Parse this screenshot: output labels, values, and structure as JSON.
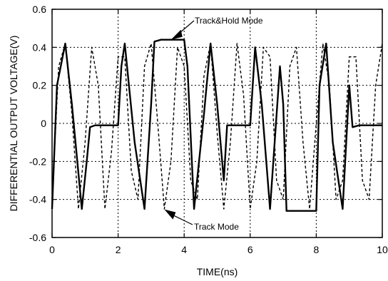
{
  "chart_data": {
    "type": "line",
    "title": "",
    "xlabel": "TIME(ns)",
    "ylabel": "DIFFERENTIAL OUTPUT VOLTAGE(V)",
    "xlim": [
      0,
      10
    ],
    "ylim": [
      -0.6,
      0.6
    ],
    "x_ticks": [
      0,
      2,
      4,
      6,
      8,
      10
    ],
    "x_tick_labels": [
      "0",
      "2",
      "4",
      "6",
      "8",
      "10"
    ],
    "y_ticks": [
      -0.6,
      -0.4,
      -0.2,
      0,
      0.2,
      0.4,
      0.6
    ],
    "y_tick_labels": [
      "-0.6",
      "-0.4",
      "-0.2",
      "0",
      "0.2",
      "0.4",
      "0.6"
    ],
    "grid": "dotted",
    "annotations": [
      {
        "text": "Track&Hold Mode",
        "target_x": 3.6,
        "target_y": 0.44
      },
      {
        "text": "Track Mode",
        "target_x": 3.4,
        "target_y": -0.4
      }
    ],
    "series": [
      {
        "style": "dashed",
        "x": [
          0,
          0.2,
          0.4,
          0.6,
          0.8,
          1.0,
          1.2,
          1.4,
          1.6,
          1.8,
          2.0,
          2.2,
          2.4,
          2.6,
          2.8,
          3.0,
          3.2,
          3.4,
          3.6,
          3.8,
          4.0,
          4.2,
          4.4,
          4.6,
          4.8,
          5.0,
          5.2,
          5.4,
          5.6,
          5.8,
          6.0,
          6.2,
          6.4,
          6.6,
          6.8,
          7.0,
          7.2,
          7.4,
          7.6,
          7.8,
          8.0,
          8.2,
          8.4,
          8.6,
          8.8,
          9.0,
          9.2,
          9.4,
          9.6,
          9.8,
          10.0
        ],
        "y": [
          -0.4,
          0.3,
          0.42,
          0.05,
          -0.45,
          -0.1,
          0.4,
          0.2,
          -0.45,
          -0.15,
          0.35,
          0.35,
          -0.25,
          -0.4,
          0.3,
          0.42,
          0.0,
          -0.45,
          -0.2,
          0.4,
          0.3,
          -0.3,
          -0.4,
          0.25,
          0.42,
          -0.05,
          -0.45,
          -0.1,
          0.42,
          0.15,
          -0.45,
          -0.2,
          0.4,
          0.35,
          -0.3,
          -0.4,
          0.3,
          0.4,
          -0.1,
          -0.45,
          0.0,
          0.42,
          0.2,
          -0.4,
          -0.3,
          0.35,
          0.35,
          -0.3,
          -0.4,
          0.2,
          0.42
        ]
      },
      {
        "style": "solid",
        "x": [
          0,
          0.15,
          0.4,
          0.6,
          0.9,
          1.05,
          1.15,
          1.3,
          2.0,
          2.1,
          2.2,
          2.5,
          2.8,
          3.0,
          3.1,
          3.3,
          4.0,
          4.1,
          4.3,
          4.6,
          4.8,
          5.0,
          5.2,
          5.3,
          5.5,
          6.0,
          6.15,
          6.35,
          6.6,
          6.9,
          7.0,
          7.1,
          7.4,
          8.0,
          8.1,
          8.3,
          8.5,
          8.8,
          9.0,
          9.1,
          9.3,
          10.0
        ],
        "y": [
          -0.45,
          0.2,
          0.42,
          0.1,
          -0.45,
          -0.2,
          -0.02,
          -0.01,
          -0.01,
          0.3,
          0.42,
          -0.1,
          -0.45,
          0.1,
          0.43,
          0.44,
          0.44,
          0.3,
          -0.45,
          0.05,
          0.42,
          0.1,
          -0.3,
          -0.01,
          -0.01,
          -0.01,
          0.4,
          0.1,
          -0.45,
          0.3,
          0.1,
          -0.46,
          -0.46,
          -0.46,
          0.2,
          0.42,
          -0.1,
          -0.45,
          0.2,
          -0.02,
          -0.01,
          -0.01
        ]
      }
    ]
  }
}
